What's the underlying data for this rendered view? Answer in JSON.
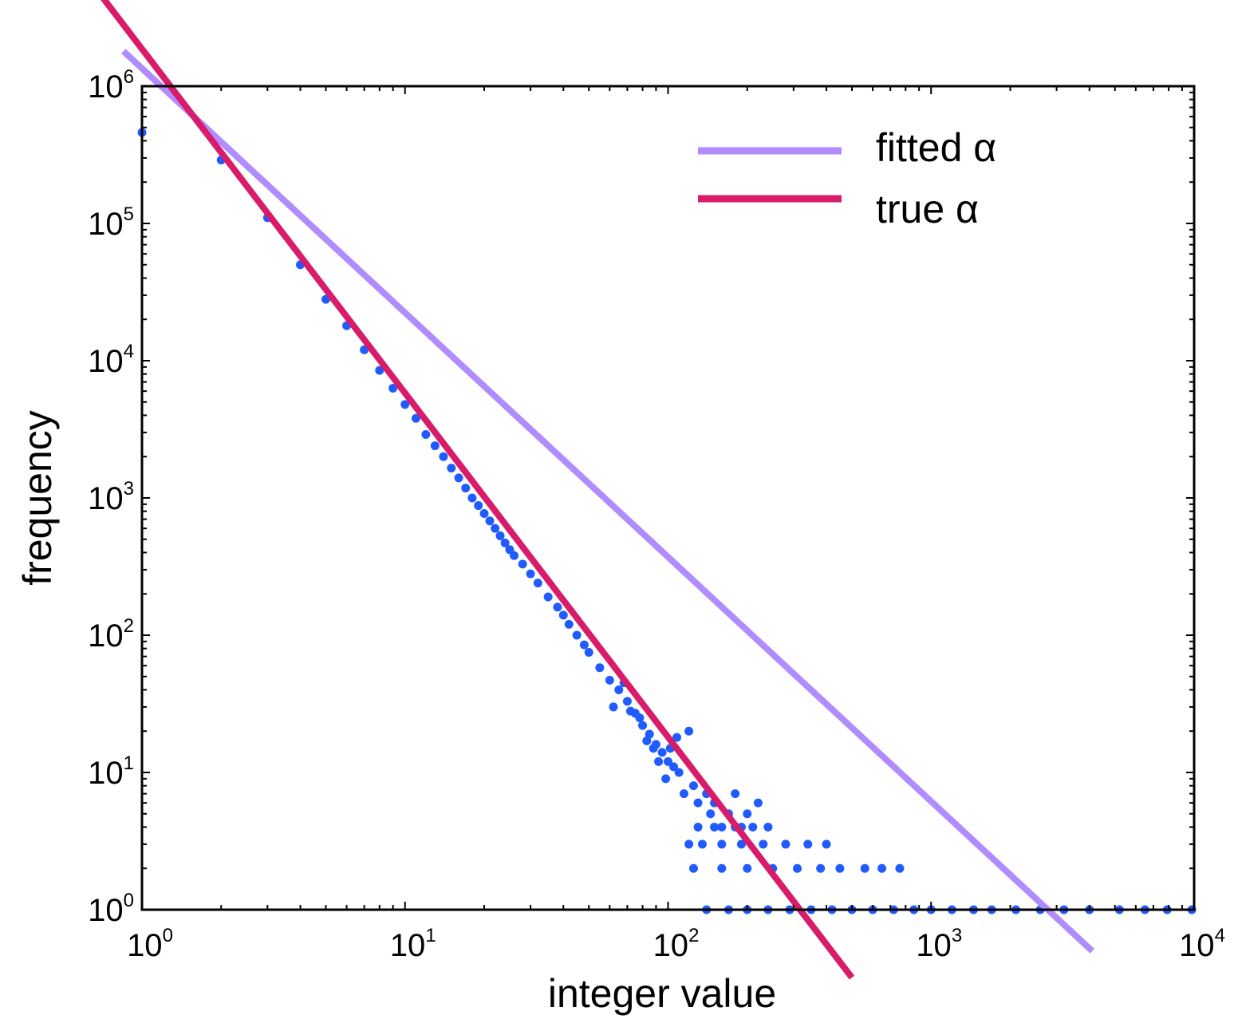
{
  "chart_data": {
    "type": "scatter",
    "title": "",
    "xlabel": "integer value",
    "ylabel": "frequency",
    "xscale": "log",
    "yscale": "log",
    "xlim": [
      1,
      10000
    ],
    "ylim": [
      1,
      1000000
    ],
    "grid": false,
    "legend_position": "top-right",
    "x_ticks": [
      {
        "base": "10",
        "exp": "0"
      },
      {
        "base": "10",
        "exp": "1"
      },
      {
        "base": "10",
        "exp": "2"
      },
      {
        "base": "10",
        "exp": "3"
      },
      {
        "base": "10",
        "exp": "4"
      }
    ],
    "y_ticks": [
      {
        "base": "10",
        "exp": "0"
      },
      {
        "base": "10",
        "exp": "1"
      },
      {
        "base": "10",
        "exp": "2"
      },
      {
        "base": "10",
        "exp": "3"
      },
      {
        "base": "10",
        "exp": "4"
      },
      {
        "base": "10",
        "exp": "5"
      },
      {
        "base": "10",
        "exp": "6"
      }
    ],
    "series": [
      {
        "type": "scatter",
        "color": "#1f5bff",
        "points": [
          [
            1,
            460000
          ],
          [
            2,
            290000
          ],
          [
            3,
            110000
          ],
          [
            4,
            50000
          ],
          [
            5,
            28000
          ],
          [
            6,
            18000
          ],
          [
            7,
            12000
          ],
          [
            8,
            8500
          ],
          [
            9,
            6300
          ],
          [
            10,
            4800
          ],
          [
            11,
            3800
          ],
          [
            12,
            2900
          ],
          [
            13,
            2400
          ],
          [
            14,
            2000
          ],
          [
            15,
            1650
          ],
          [
            16,
            1400
          ],
          [
            17,
            1180
          ],
          [
            18,
            1000
          ],
          [
            19,
            880
          ],
          [
            20,
            770
          ],
          [
            21,
            680
          ],
          [
            22,
            600
          ],
          [
            23,
            530
          ],
          [
            24,
            470
          ],
          [
            25,
            420
          ],
          [
            26,
            380
          ],
          [
            28,
            330
          ],
          [
            30,
            280
          ],
          [
            32,
            240
          ],
          [
            35,
            190
          ],
          [
            38,
            160
          ],
          [
            40,
            140
          ],
          [
            42,
            120
          ],
          [
            45,
            100
          ],
          [
            48,
            85
          ],
          [
            50,
            75
          ],
          [
            55,
            58
          ],
          [
            60,
            47
          ],
          [
            65,
            40
          ],
          [
            70,
            33
          ],
          [
            75,
            27
          ],
          [
            80,
            22
          ],
          [
            85,
            19
          ],
          [
            90,
            16
          ],
          [
            95,
            14
          ],
          [
            100,
            12
          ],
          [
            105,
            11
          ],
          [
            110,
            10
          ],
          [
            62,
            30
          ],
          [
            68,
            45
          ],
          [
            72,
            28
          ],
          [
            78,
            25
          ],
          [
            83,
            17
          ],
          [
            88,
            15
          ],
          [
            92,
            12
          ],
          [
            98,
            9
          ],
          [
            102,
            15
          ],
          [
            108,
            18
          ],
          [
            115,
            7
          ],
          [
            120,
            20
          ],
          [
            125,
            8
          ],
          [
            130,
            6
          ],
          [
            140,
            7
          ],
          [
            145,
            5
          ],
          [
            150,
            6
          ],
          [
            160,
            4
          ],
          [
            170,
            5
          ],
          [
            180,
            7
          ],
          [
            190,
            4
          ],
          [
            200,
            5
          ],
          [
            220,
            6
          ],
          [
            130,
            4
          ],
          [
            150,
            4
          ],
          [
            180,
            4
          ],
          [
            210,
            4
          ],
          [
            240,
            4
          ],
          [
            120,
            3
          ],
          [
            135,
            3
          ],
          [
            160,
            3
          ],
          [
            190,
            3
          ],
          [
            230,
            3
          ],
          [
            280,
            3
          ],
          [
            340,
            3
          ],
          [
            400,
            3
          ],
          [
            125,
            2
          ],
          [
            160,
            2
          ],
          [
            200,
            2
          ],
          [
            250,
            2
          ],
          [
            310,
            2
          ],
          [
            380,
            2
          ],
          [
            450,
            2
          ],
          [
            560,
            2
          ],
          [
            650,
            2
          ],
          [
            760,
            2
          ],
          [
            140,
            1
          ],
          [
            170,
            1
          ],
          [
            200,
            1
          ],
          [
            240,
            1
          ],
          [
            290,
            1
          ],
          [
            350,
            1
          ],
          [
            420,
            1
          ],
          [
            500,
            1
          ],
          [
            600,
            1
          ],
          [
            720,
            1
          ],
          [
            860,
            1
          ],
          [
            1000,
            1
          ],
          [
            1200,
            1
          ],
          [
            1450,
            1
          ],
          [
            1700,
            1
          ],
          [
            2100,
            1
          ],
          [
            2600,
            1
          ],
          [
            3200,
            1
          ],
          [
            4000,
            1
          ],
          [
            5200,
            1
          ],
          [
            6500,
            1
          ],
          [
            7900,
            1
          ],
          [
            9800,
            1
          ]
        ]
      },
      {
        "type": "line",
        "name": "fitted α",
        "color": "#b08cff",
        "alpha": 1.8,
        "x": [
          0.85,
          4100
        ],
        "y": [
          1800000,
          0.5
        ]
      },
      {
        "type": "line",
        "name": "true α",
        "color": "#d81b6a",
        "alpha": 2.5,
        "x": [
          0.65,
          500
        ],
        "y": [
          5500000,
          0.32
        ]
      }
    ]
  }
}
